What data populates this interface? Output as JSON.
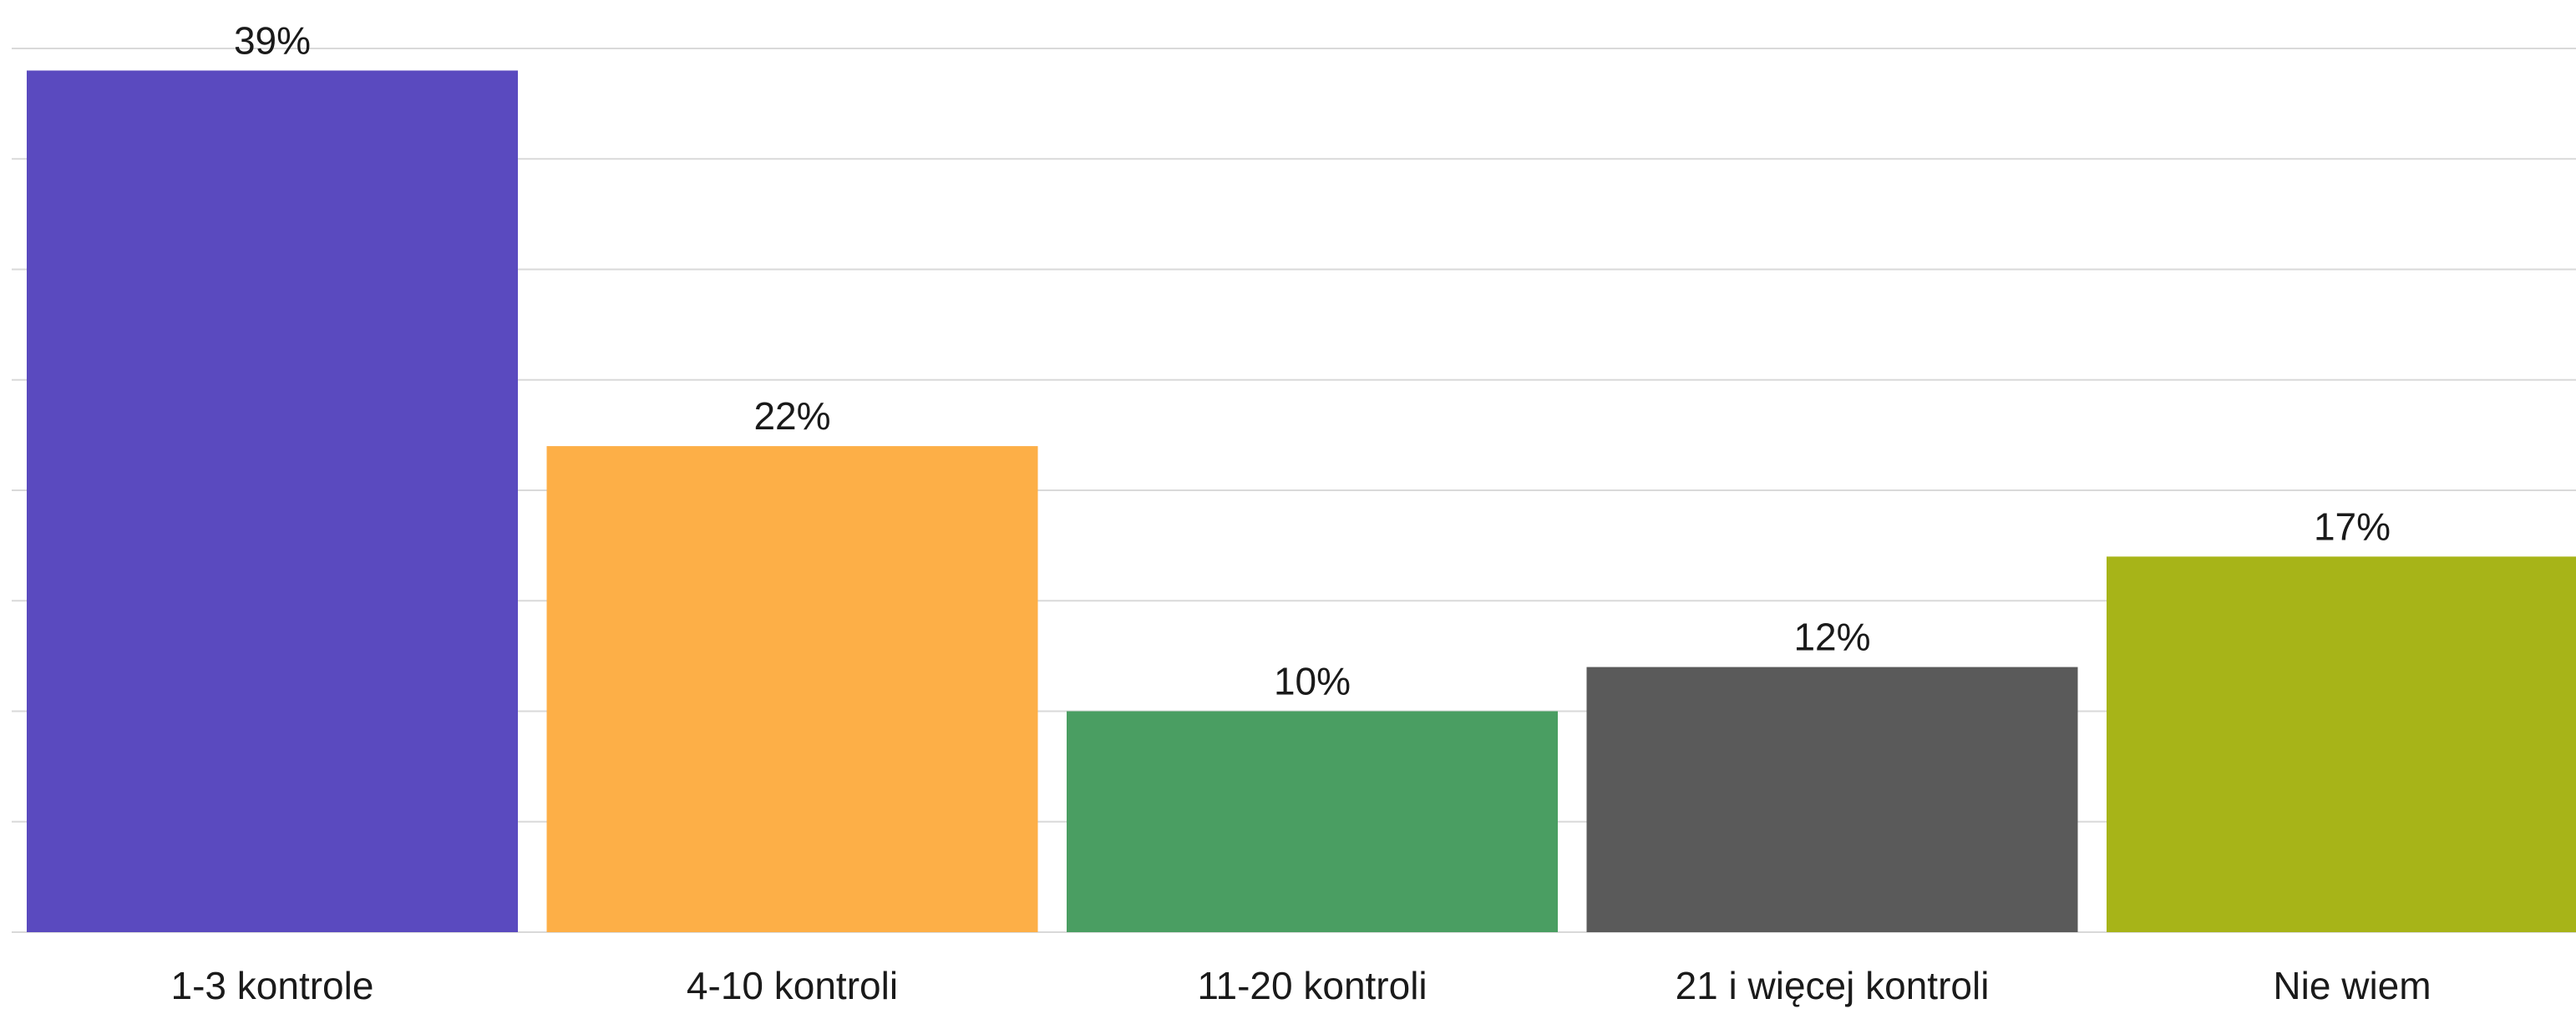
{
  "chart_data": {
    "type": "bar",
    "categories": [
      "1-3 kontrole",
      "4-10 kontroli",
      "11-20 kontroli",
      "21 i więcej kontroli",
      "Nie wiem"
    ],
    "values": [
      39,
      22,
      10,
      12,
      17
    ],
    "data_labels": [
      "39%",
      "22%",
      "10%",
      "12%",
      "17%"
    ],
    "colors": [
      "#5a4abf",
      "#fdaf47",
      "#4a9e62",
      "#5a5a5a",
      "#a7b418"
    ],
    "ylim": [
      0,
      40
    ],
    "y_grid_step": 5,
    "grid": true,
    "legend": "none",
    "title": "",
    "xlabel": "",
    "ylabel": ""
  }
}
